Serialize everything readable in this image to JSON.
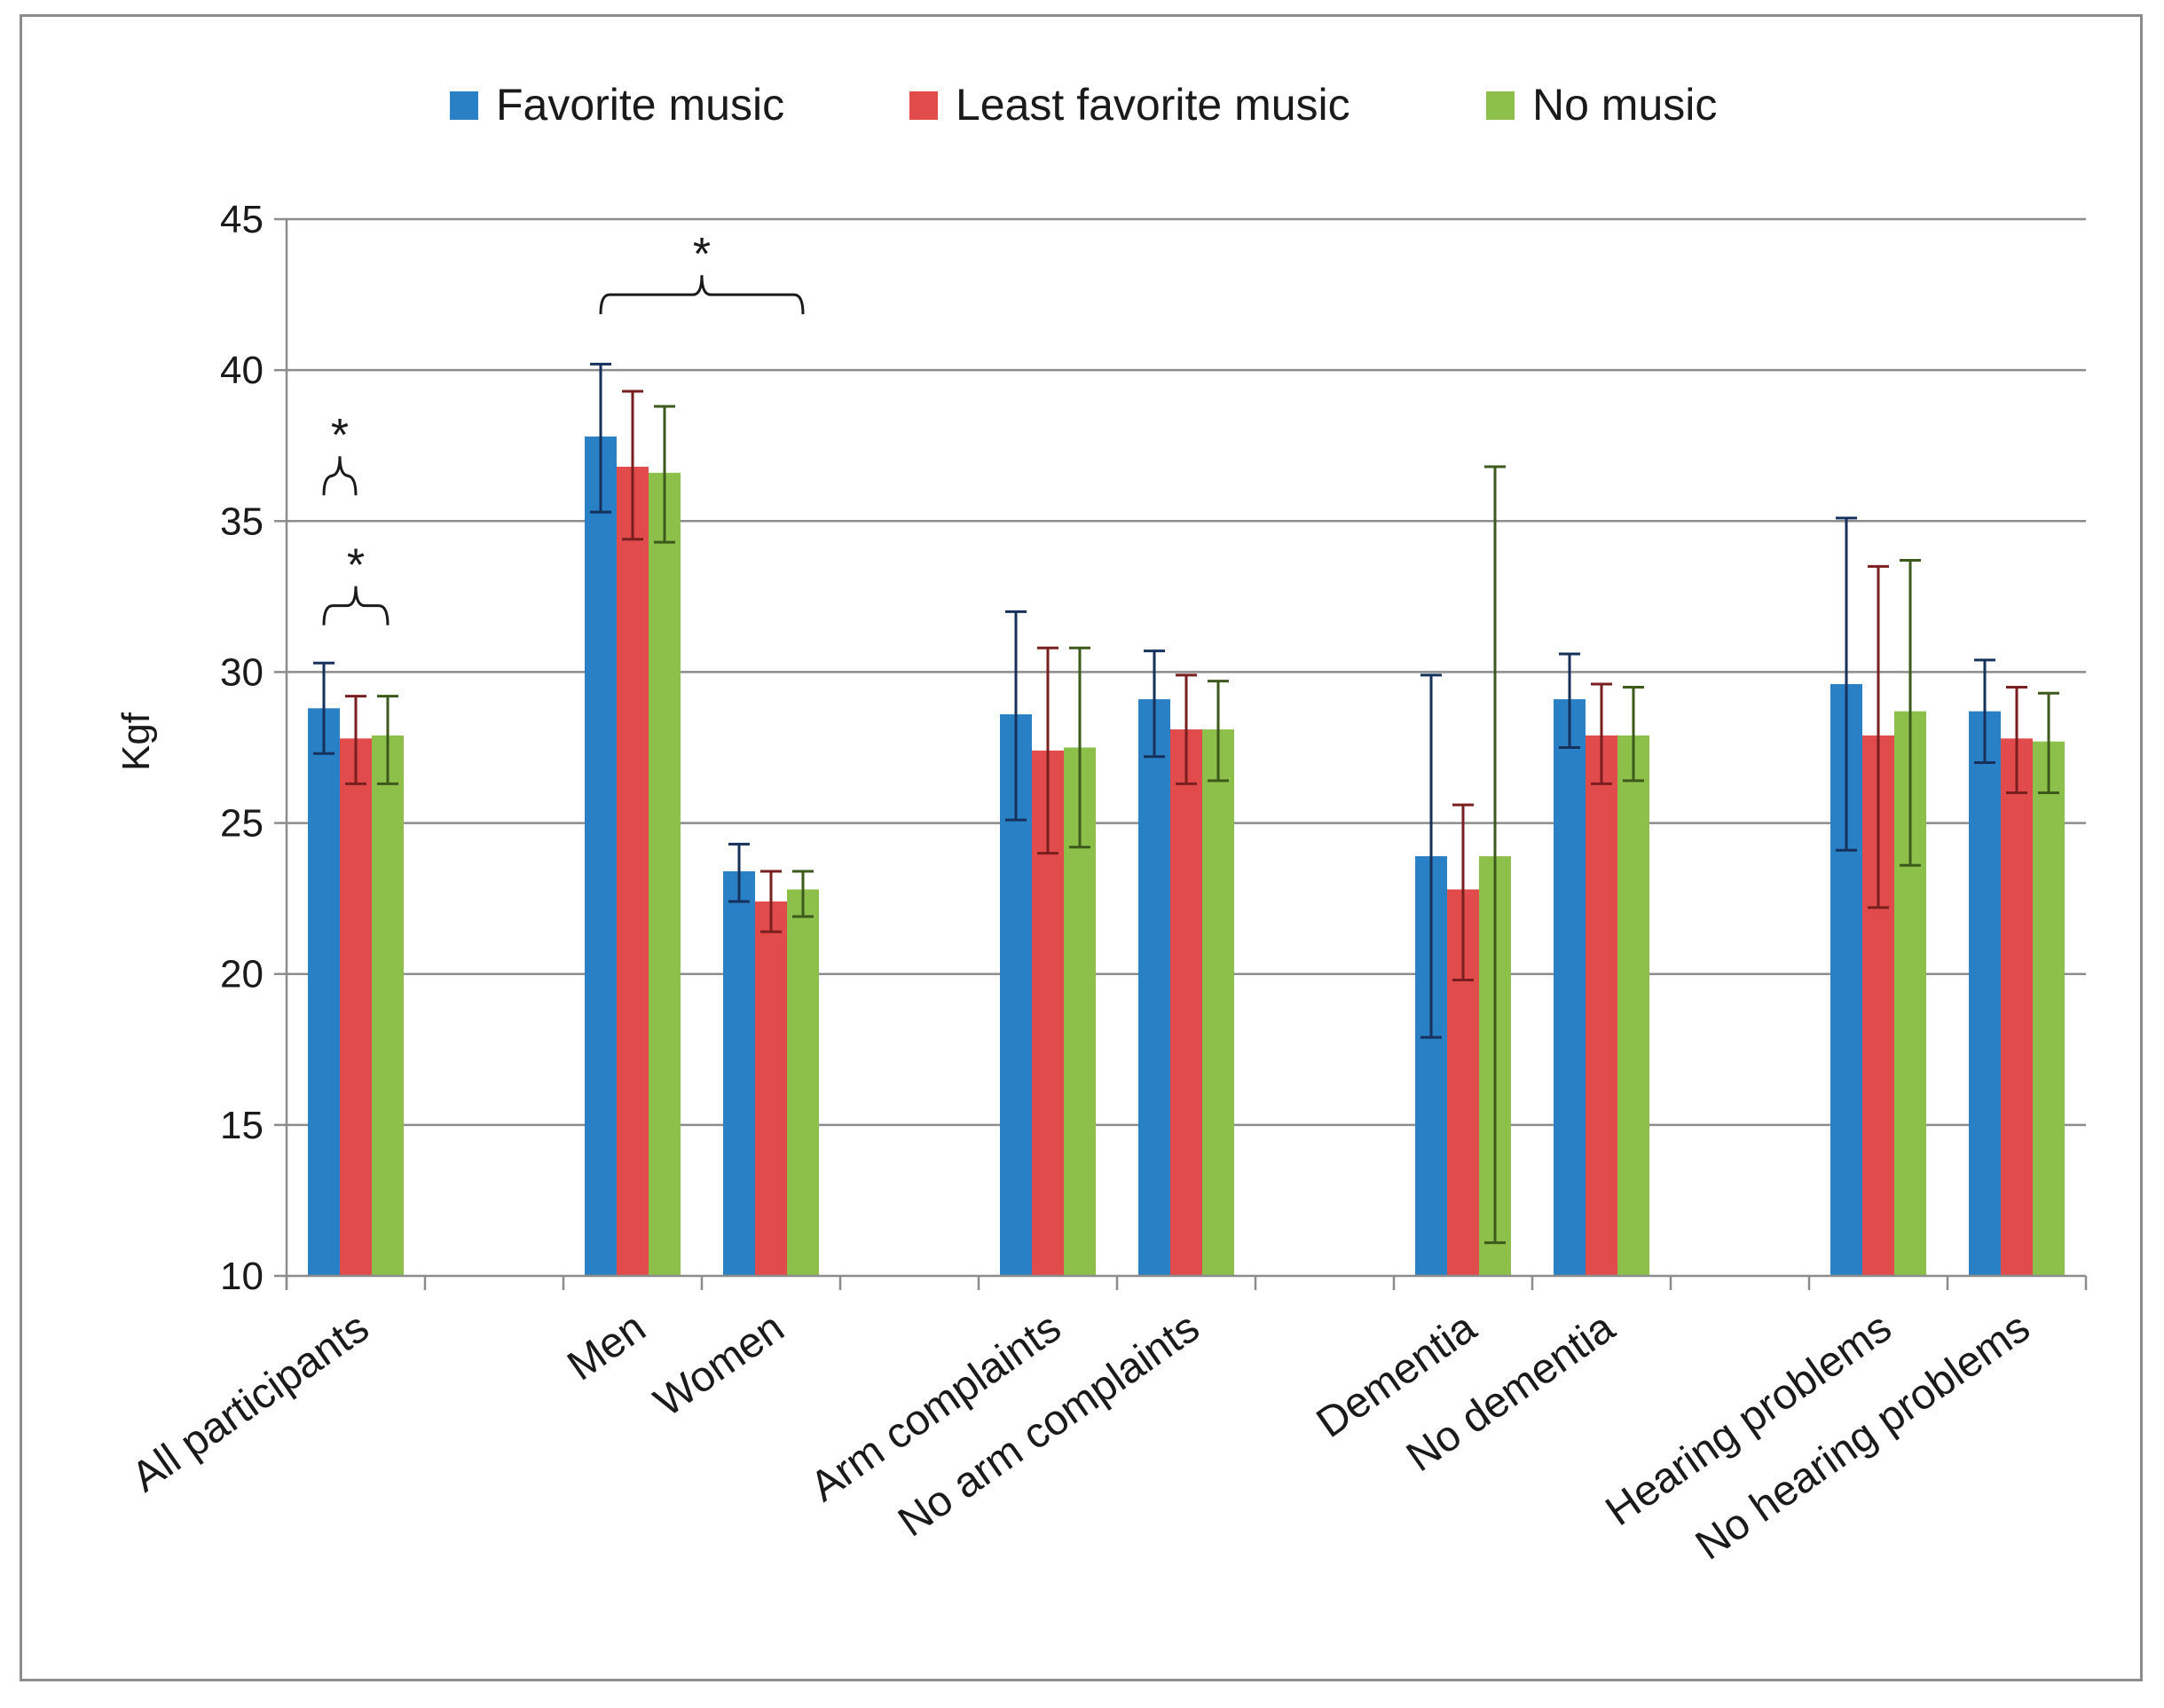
{
  "chart_data": {
    "type": "bar",
    "title": "",
    "xlabel": "",
    "ylabel": "Kgf",
    "ylim": [
      10,
      45
    ],
    "yticks": [
      10,
      15,
      20,
      25,
      30,
      35,
      40,
      45
    ],
    "grid": true,
    "legend_position": "top",
    "categories": [
      "All participants",
      "",
      "Men",
      "Women",
      "",
      "Arm complaints",
      "No arm complaints",
      "",
      "Dementia",
      "No dementia",
      "",
      "Hearing problems",
      "No hearing problems"
    ],
    "series": [
      {
        "name": "Favorite music",
        "color": "#2980c4",
        "error_color": "#16325c",
        "values": [
          28.8,
          null,
          37.8,
          23.4,
          null,
          28.6,
          29.1,
          null,
          23.9,
          29.1,
          null,
          29.6,
          28.7
        ],
        "err_low": [
          27.3,
          null,
          35.3,
          22.4,
          null,
          25.1,
          27.2,
          null,
          17.9,
          27.5,
          null,
          24.1,
          27.0
        ],
        "err_high": [
          30.3,
          null,
          40.2,
          24.3,
          null,
          32.0,
          30.7,
          null,
          29.9,
          30.6,
          null,
          35.1,
          30.4
        ]
      },
      {
        "name": "Least favorite music",
        "color": "#e14b4b",
        "error_color": "#7a1f1f",
        "values": [
          27.8,
          null,
          36.8,
          22.4,
          null,
          27.4,
          28.1,
          null,
          22.8,
          27.9,
          null,
          27.9,
          27.8
        ],
        "err_low": [
          26.3,
          null,
          34.4,
          21.4,
          null,
          24.0,
          26.3,
          null,
          19.8,
          26.3,
          null,
          22.2,
          26.0
        ],
        "err_high": [
          29.2,
          null,
          39.3,
          23.4,
          null,
          30.8,
          29.9,
          null,
          25.6,
          29.6,
          null,
          33.5,
          29.5
        ]
      },
      {
        "name": "No music",
        "color": "#8dc04a",
        "error_color": "#3d5a1c",
        "values": [
          27.9,
          null,
          36.6,
          22.8,
          null,
          27.5,
          28.1,
          null,
          23.9,
          27.9,
          null,
          28.7,
          27.7
        ],
        "err_low": [
          26.3,
          null,
          34.3,
          21.9,
          null,
          24.2,
          26.4,
          null,
          11.1,
          26.4,
          null,
          23.6,
          26.0
        ],
        "err_high": [
          29.2,
          null,
          38.8,
          23.4,
          null,
          30.8,
          29.7,
          null,
          36.8,
          29.5,
          null,
          33.7,
          29.3
        ]
      }
    ],
    "annotations": [
      {
        "text": "*",
        "group_start": 0,
        "group_end": 0,
        "series_start": 0,
        "series_end": 1,
        "level": 36.5
      },
      {
        "text": "*",
        "group_start": 0,
        "group_end": 0,
        "series_start": 0,
        "series_end": 2,
        "level": 32.2
      },
      {
        "text": "*",
        "group_start": 2,
        "group_end": 3,
        "series_start": 0,
        "series_end": 2,
        "level": 42.5
      }
    ]
  }
}
